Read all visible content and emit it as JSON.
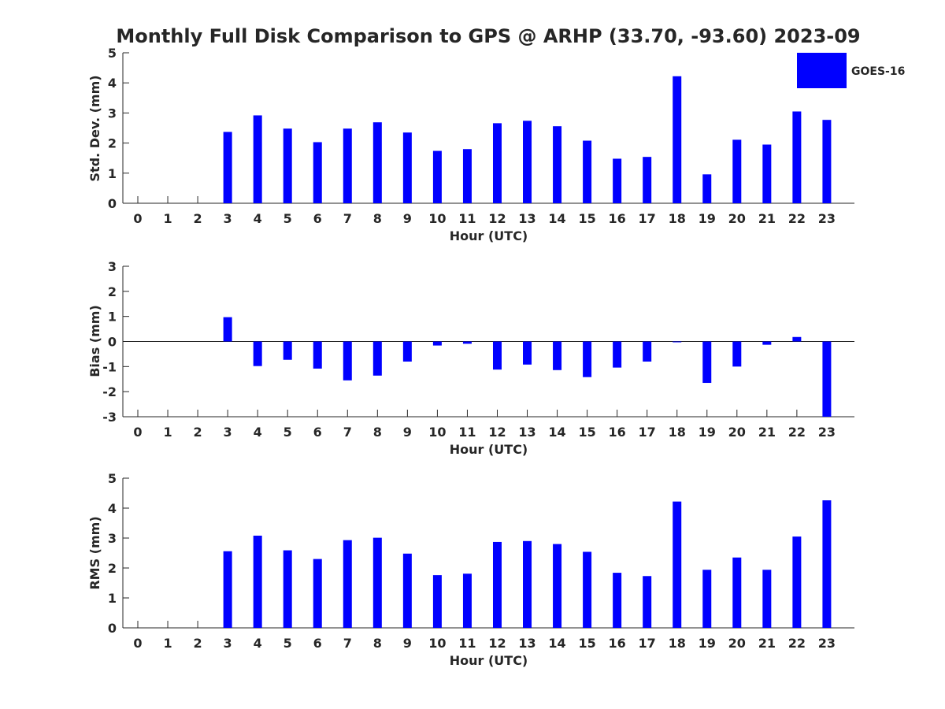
{
  "title": "Monthly Full Disk Comparison to GPS @ ARHP (33.70, -93.60) 2023-09",
  "legend": {
    "label": "GOES-16",
    "color": "#0000ff",
    "placement": "top-right"
  },
  "chart_data": [
    {
      "type": "bar",
      "categories": [
        "0",
        "1",
        "2",
        "3",
        "4",
        "5",
        "6",
        "7",
        "8",
        "9",
        "10",
        "11",
        "12",
        "13",
        "14",
        "15",
        "16",
        "17",
        "18",
        "19",
        "20",
        "21",
        "22",
        "23"
      ],
      "series": [
        {
          "name": "GOES-16",
          "values": [
            null,
            null,
            null,
            2.37,
            2.92,
            2.48,
            2.03,
            2.48,
            2.69,
            2.35,
            1.74,
            1.8,
            2.66,
            2.74,
            2.56,
            2.08,
            1.48,
            1.54,
            4.22,
            0.96,
            2.11,
            1.95,
            3.05,
            2.77
          ]
        }
      ],
      "xlabel": "Hour (UTC)",
      "ylabel": "Std. Dev. (mm)",
      "ylim": [
        0,
        5
      ],
      "yticks": [
        "0",
        "1",
        "2",
        "3",
        "4",
        "5"
      ],
      "color": "#0000ff"
    },
    {
      "type": "bar",
      "categories": [
        "0",
        "1",
        "2",
        "3",
        "4",
        "5",
        "6",
        "7",
        "8",
        "9",
        "10",
        "11",
        "12",
        "13",
        "14",
        "15",
        "16",
        "17",
        "18",
        "19",
        "20",
        "21",
        "22",
        "23"
      ],
      "series": [
        {
          "name": "GOES-16",
          "values": [
            null,
            null,
            null,
            0.97,
            -0.98,
            -0.73,
            -1.08,
            -1.55,
            -1.36,
            -0.8,
            -0.16,
            -0.09,
            -1.12,
            -0.92,
            -1.14,
            -1.42,
            -1.04,
            -0.8,
            -0.02,
            -1.65,
            -1.0,
            -0.13,
            0.18,
            -3.0
          ]
        }
      ],
      "xlabel": "Hour (UTC)",
      "ylabel": "Bias (mm)",
      "ylim": [
        -3,
        3
      ],
      "yticks": [
        "-3",
        "-2",
        "-1",
        "0",
        "1",
        "2",
        "3"
      ],
      "color": "#0000ff"
    },
    {
      "type": "bar",
      "categories": [
        "0",
        "1",
        "2",
        "3",
        "4",
        "5",
        "6",
        "7",
        "8",
        "9",
        "10",
        "11",
        "12",
        "13",
        "14",
        "15",
        "16",
        "17",
        "18",
        "19",
        "20",
        "21",
        "22",
        "23"
      ],
      "series": [
        {
          "name": "GOES-16",
          "values": [
            null,
            null,
            null,
            2.56,
            3.08,
            2.59,
            2.3,
            2.93,
            3.01,
            2.48,
            1.76,
            1.81,
            2.87,
            2.9,
            2.8,
            2.54,
            1.84,
            1.73,
            4.22,
            1.94,
            2.35,
            1.94,
            3.05,
            4.26
          ]
        }
      ],
      "xlabel": "Hour (UTC)",
      "ylabel": "RMS (mm)",
      "ylim": [
        0,
        5
      ],
      "yticks": [
        "0",
        "1",
        "2",
        "3",
        "4",
        "5"
      ],
      "color": "#0000ff"
    }
  ]
}
